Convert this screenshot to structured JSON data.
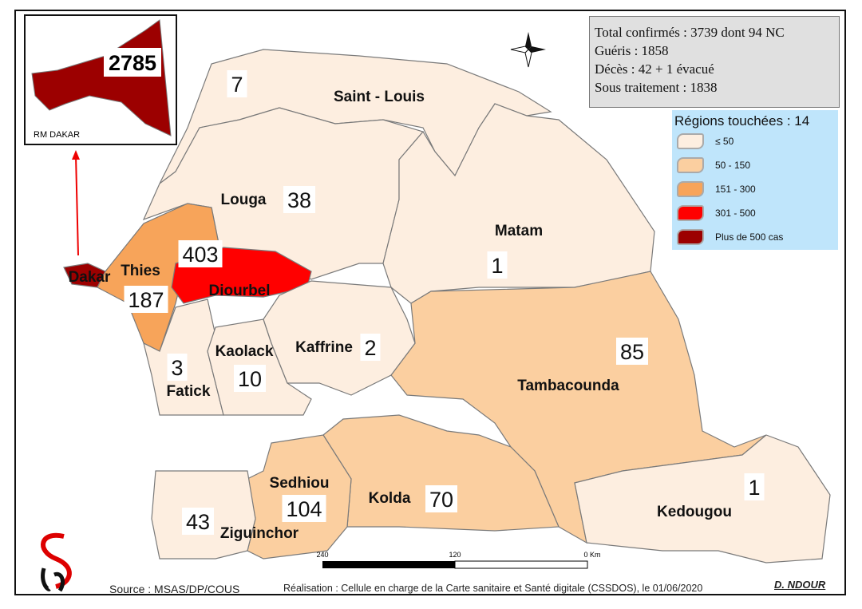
{
  "summary": {
    "total": "Total confirmés : 3739  dont 94  NC",
    "recovered": "Guéris : 1858",
    "deaths": "Décès : 42 + 1 évacué",
    "treatment": "Sous traitement : 1838"
  },
  "legend": {
    "title": "Régions touchées : 14",
    "classes": [
      {
        "label": "≤ 50",
        "color": "#fdeee0"
      },
      {
        "label": "50 - 150",
        "color": "#fbcfa0"
      },
      {
        "label": "151 - 300",
        "color": "#f7a45a"
      },
      {
        "label": "301 - 500",
        "color": "#ff0000"
      },
      {
        "label": "Plus de 500 cas",
        "color": "#9c0000"
      }
    ]
  },
  "inset": {
    "label": "RM DAKAR",
    "value": "2785"
  },
  "regions": [
    {
      "name": "Saint - Louis",
      "value": "7"
    },
    {
      "name": "Louga",
      "value": "38"
    },
    {
      "name": "Matam",
      "value": "1"
    },
    {
      "name": "Tambacounda",
      "value": "85"
    },
    {
      "name": "Kedougou",
      "value": "1"
    },
    {
      "name": "Kolda",
      "value": "70"
    },
    {
      "name": "Sedhiou",
      "value": "104"
    },
    {
      "name": "Ziguinchor",
      "value": "43"
    },
    {
      "name": "Dakar",
      "value": ""
    },
    {
      "name": "Thies",
      "value": "187"
    },
    {
      "name": "Diourbel",
      "value": "403"
    },
    {
      "name": "Fatick",
      "value": "3"
    },
    {
      "name": "Kaolack",
      "value": "10"
    },
    {
      "name": "Kaffrine",
      "value": "2"
    }
  ],
  "scale": {
    "ticks": [
      "240",
      "120",
      "0 Km"
    ]
  },
  "footer": {
    "source": "Source : MSAS/DP/COUS",
    "credit": "Réalisation : Cellule en charge de la Carte sanitaire et Santé digitale (CSSDOS), le 01/06/2020",
    "author": "D. NDOUR"
  }
}
